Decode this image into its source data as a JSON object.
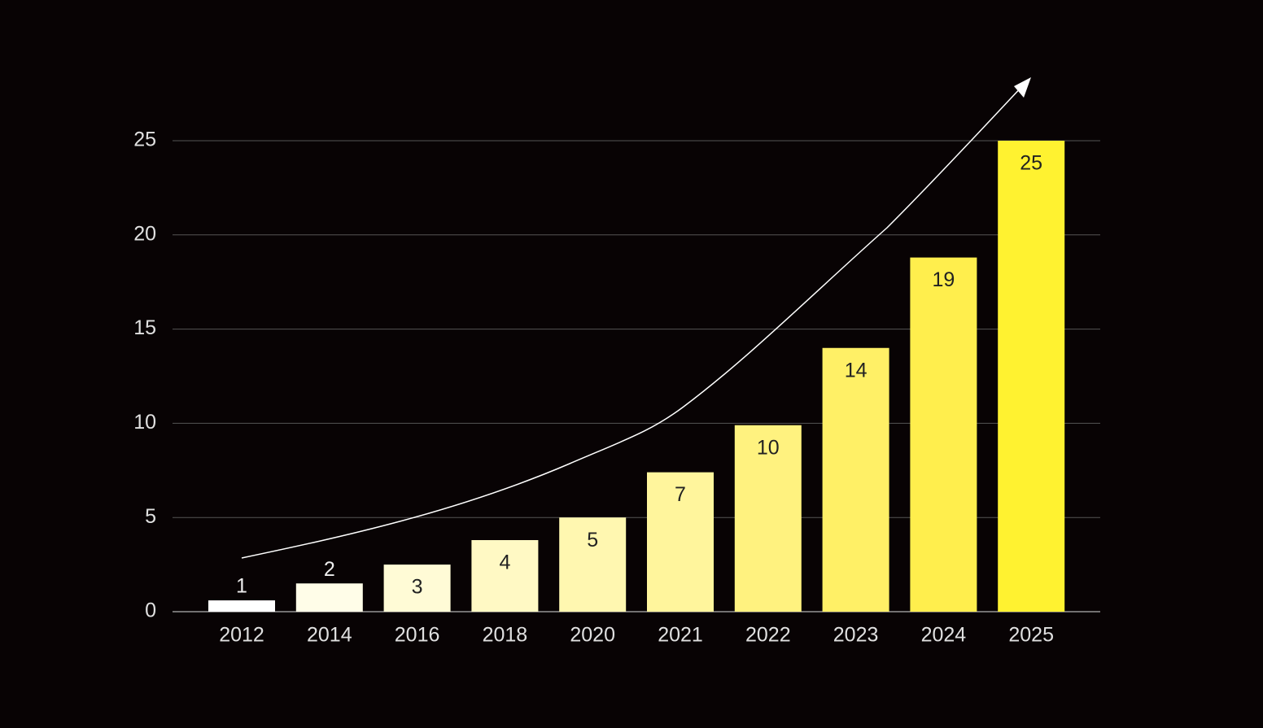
{
  "chart_data": {
    "type": "bar",
    "categories": [
      "2012",
      "2014",
      "2016",
      "2018",
      "2020",
      "2021",
      "2022",
      "2023",
      "2024",
      "2025"
    ],
    "values": [
      0.6,
      1.5,
      2.5,
      3.8,
      5,
      7.4,
      9.9,
      14,
      18.8,
      25
    ],
    "value_labels": [
      "1",
      "2",
      "3",
      "4",
      "5",
      "7",
      "10",
      "14",
      "19",
      "25"
    ],
    "colors": [
      "#ffffff",
      "#fffde8",
      "#fffbd6",
      "#fff9c4",
      "#fff7b0",
      "#fff59c",
      "#fff27f",
      "#fff066",
      "#ffee4d",
      "#fff230"
    ],
    "ylim": [
      0,
      25
    ],
    "yticks": [
      0,
      5,
      10,
      15,
      20,
      25
    ],
    "grid": true
  }
}
